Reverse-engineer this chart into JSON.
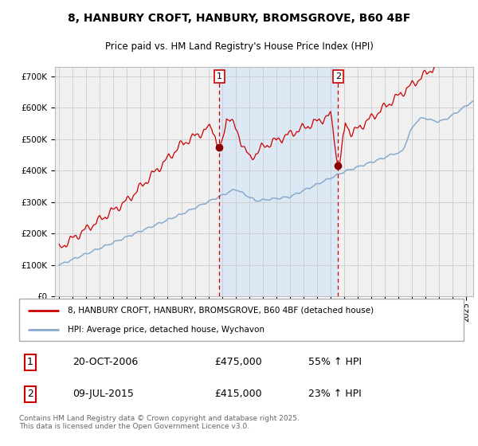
{
  "title_line1": "8, HANBURY CROFT, HANBURY, BROMSGROVE, B60 4BF",
  "title_line2": "Price paid vs. HM Land Registry's House Price Index (HPI)",
  "legend_label_red": "8, HANBURY CROFT, HANBURY, BROMSGROVE, B60 4BF (detached house)",
  "legend_label_blue": "HPI: Average price, detached house, Wychavon",
  "sale1_date": "20-OCT-2006",
  "sale1_price": "£475,000",
  "sale1_hpi": "55% ↑ HPI",
  "sale2_date": "09-JUL-2015",
  "sale2_price": "£415,000",
  "sale2_hpi": "23% ↑ HPI",
  "footer": "Contains HM Land Registry data © Crown copyright and database right 2025.\nThis data is licensed under the Open Government Licence v3.0.",
  "bg_color": "#ffffff",
  "plot_bg_color": "#f0f0f0",
  "red_color": "#cc0000",
  "blue_color": "#88aacc",
  "shade_color": "#dde8f5",
  "grid_color": "#cccccc",
  "ylim": [
    0,
    730000
  ],
  "yticks": [
    0,
    100000,
    200000,
    300000,
    400000,
    500000,
    600000,
    700000
  ],
  "sale1_x": 2006.8,
  "sale2_x": 2015.55,
  "sale1_y": 475000,
  "sale2_y": 415000,
  "xmin": 1994.7,
  "xmax": 2025.5
}
